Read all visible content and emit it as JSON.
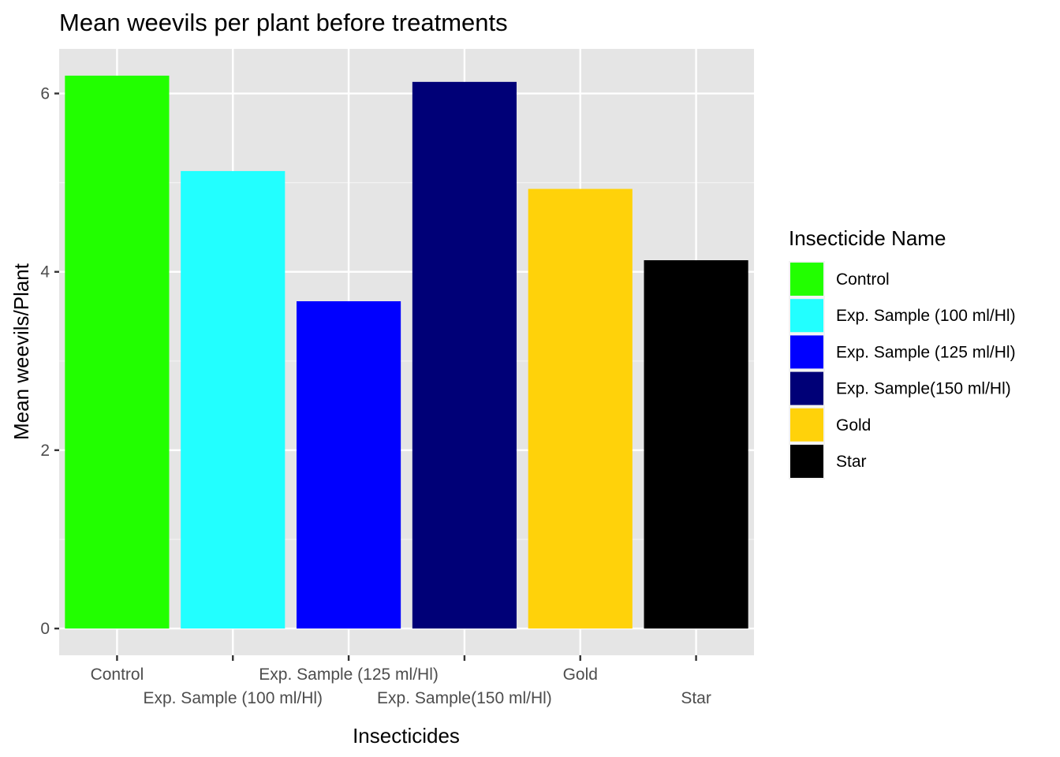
{
  "chart_data": {
    "type": "bar",
    "title": "Mean weevils per plant before treatments",
    "xlabel": "Insecticides",
    "ylabel": "Mean weevils/Plant",
    "categories": [
      "Control",
      "Exp. Sample (100 ml/Hl)",
      "Exp. Sample (125 ml/Hl)",
      "Exp. Sample(150 ml/Hl)",
      "Gold",
      "Star"
    ],
    "values": [
      6.2,
      5.13,
      3.67,
      6.13,
      4.93,
      4.13
    ],
    "colors": [
      "#22FF00",
      "#22FFFF",
      "#0000FF",
      "#000077",
      "#FFD20A",
      "#000000"
    ],
    "ylim": [
      -0.3,
      6.5
    ],
    "yticks": [
      0,
      2,
      4,
      6
    ],
    "grid": true,
    "legend": {
      "title": "Insecticide Name",
      "position": "right",
      "entries": [
        "Control",
        "Exp. Sample (100 ml/Hl)",
        "Exp. Sample (125 ml/Hl)",
        "Exp. Sample(150 ml/Hl)",
        "Gold",
        "Star"
      ]
    }
  }
}
